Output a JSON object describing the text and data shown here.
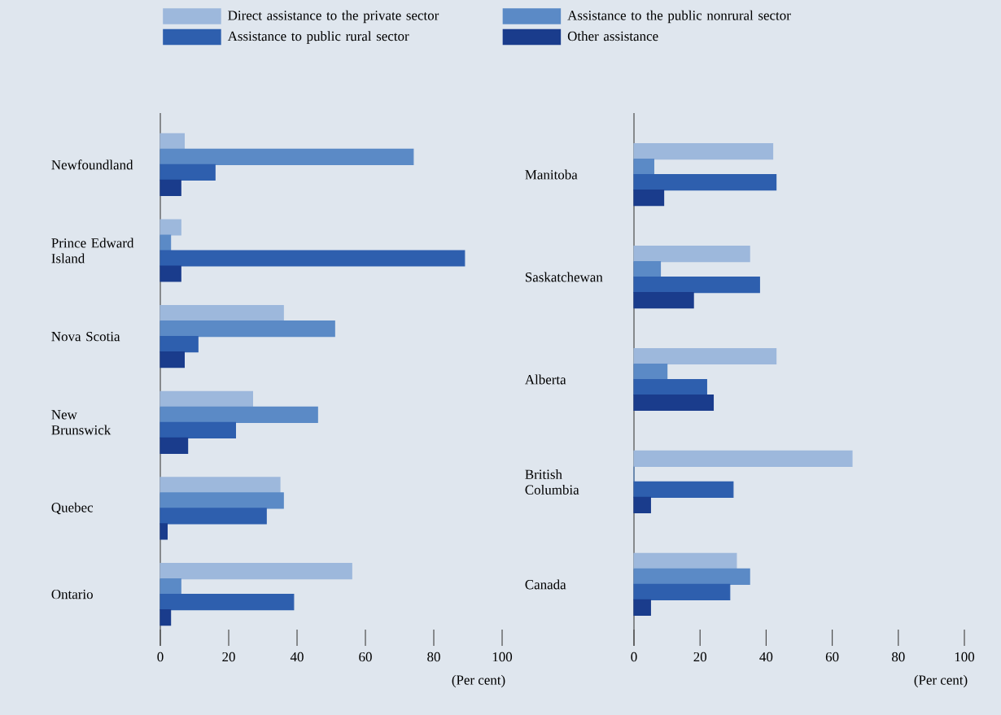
{
  "chart_data": [
    {
      "type": "bar",
      "orientation": "horizontal",
      "categories": [
        "Newfoundland",
        "Prince Edward Island",
        "Nova Scotia",
        "New Brunswick",
        "Quebec",
        "Ontario"
      ],
      "xlim": [
        0,
        100
      ],
      "xticks": [
        0,
        20,
        40,
        60,
        80,
        100
      ],
      "xlabel": "(Per cent)",
      "legend": "top",
      "series": [
        {
          "name": "Direct assistance to the private sector",
          "color": "#9db8dc",
          "values": [
            7,
            6,
            36,
            27,
            35,
            56
          ]
        },
        {
          "name": "Assistance to the public nonrural sector",
          "color": "#5b8ac6",
          "values": [
            74,
            3,
            51,
            46,
            36,
            6
          ]
        },
        {
          "name": "Assistance to public rural sector",
          "color": "#2e5fae",
          "values": [
            16,
            89,
            11,
            22,
            31,
            39
          ]
        },
        {
          "name": "Other assistance",
          "color": "#1a3c8c",
          "values": [
            6,
            6,
            7,
            8,
            2,
            3
          ]
        }
      ]
    },
    {
      "type": "bar",
      "orientation": "horizontal",
      "categories": [
        "Manitoba",
        "Saskatchewan",
        "Alberta",
        "British Columbia",
        "Canada"
      ],
      "xlim": [
        0,
        100
      ],
      "xticks": [
        0,
        20,
        40,
        60,
        80,
        100
      ],
      "xlabel": "(Per cent)",
      "series": [
        {
          "color": "#9db8dc",
          "values": [
            42,
            35,
            43,
            66,
            31
          ]
        },
        {
          "color": "#5b8ac6",
          "values": [
            6,
            8,
            10,
            0,
            35
          ]
        },
        {
          "color": "#2e5fae",
          "values": [
            43,
            38,
            22,
            30,
            29
          ]
        },
        {
          "color": "#1a3c8c",
          "values": [
            9,
            18,
            24,
            5,
            5
          ]
        }
      ]
    }
  ]
}
